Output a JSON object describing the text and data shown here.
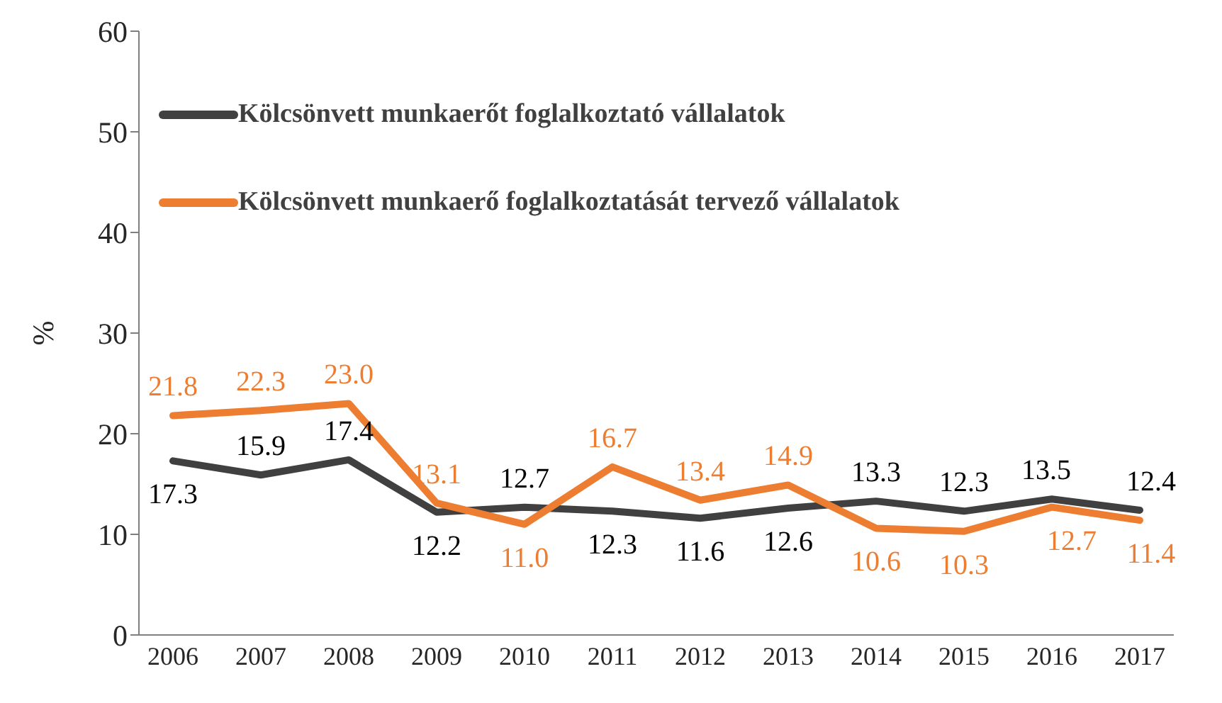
{
  "chart_data": {
    "type": "line",
    "ylabel": "%",
    "categories": [
      "2006",
      "2007",
      "2008",
      "2009",
      "2010",
      "2011",
      "2012",
      "2013",
      "2014",
      "2015",
      "2016",
      "2017"
    ],
    "series": [
      {
        "name": "Kölcsönvett munkaerőt foglalkoztató vállalatok",
        "color": "#404040",
        "values": [
          17.3,
          15.9,
          17.4,
          12.2,
          12.7,
          12.3,
          11.6,
          12.6,
          13.3,
          12.3,
          13.5,
          12.4
        ],
        "value_labels": [
          "17.3",
          "15.9",
          "17.4",
          "12.2",
          "12.7",
          "12.3",
          "11.6",
          "12.6",
          "13.3",
          "12.3",
          "13.5",
          "12.4"
        ]
      },
      {
        "name": "Kölcsönvett munkaerő foglalkoztatását tervező vállalatok",
        "color": "#ed7d31",
        "values": [
          21.8,
          22.3,
          23.0,
          13.1,
          11.0,
          16.7,
          13.4,
          14.9,
          10.6,
          10.3,
          12.7,
          11.4
        ],
        "value_labels": [
          "21.8",
          "22.3",
          "23.0",
          "13.1",
          "11.0",
          "16.7",
          "13.4",
          "14.9",
          "10.6",
          "10.3",
          "12.7",
          "11.4"
        ]
      }
    ],
    "ylim": [
      0,
      60
    ],
    "yticks": [
      0,
      10,
      20,
      30,
      40,
      50,
      60
    ],
    "grid": false,
    "legend": "top left",
    "marker": "none",
    "line_style": "solid"
  }
}
